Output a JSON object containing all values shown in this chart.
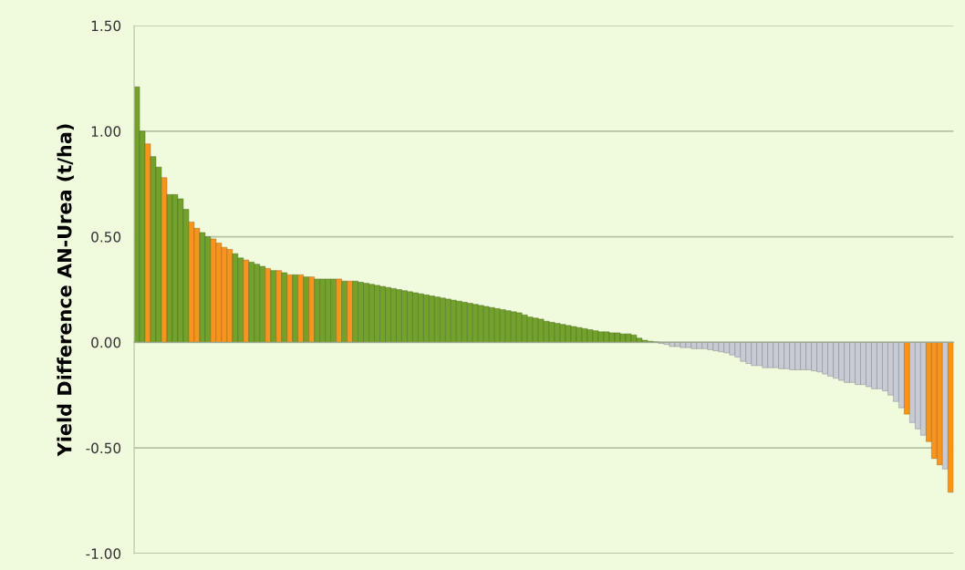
{
  "chart_data": {
    "type": "bar",
    "ylabel": "Yield Difference AN-Urea (t/ha)",
    "categories": [
      null,
      null,
      null,
      null,
      null,
      null,
      null,
      null,
      null,
      null,
      null,
      null,
      null,
      null,
      null,
      null,
      null,
      null,
      null,
      null,
      null,
      null,
      null,
      null,
      null,
      null,
      null,
      null,
      null,
      null,
      null,
      null,
      null,
      null,
      null,
      null,
      null,
      null,
      null,
      null,
      null,
      null,
      null,
      null,
      null,
      null,
      null,
      null,
      null,
      null,
      null,
      null,
      null,
      null,
      null,
      null,
      null,
      null,
      null,
      null,
      null,
      null,
      null,
      null,
      null,
      null,
      null,
      null,
      null,
      null,
      null,
      null,
      null,
      null,
      null,
      null,
      null,
      null,
      null,
      null,
      null,
      null,
      null,
      null,
      null,
      null,
      null,
      null,
      null,
      null,
      null,
      null,
      null,
      null,
      null,
      null,
      null,
      null,
      null,
      null,
      null,
      null,
      null,
      null,
      null,
      null,
      null,
      null,
      null,
      null,
      null,
      null,
      null,
      null,
      null,
      null,
      null,
      null,
      null,
      null,
      null,
      null,
      null,
      null,
      null,
      null,
      null,
      null,
      null,
      null,
      null,
      null,
      null,
      null,
      null,
      null,
      null,
      null,
      null,
      null,
      null,
      null,
      null,
      null,
      null,
      null,
      null,
      null,
      null,
      null
    ],
    "values": [
      1.21,
      1.0,
      0.94,
      0.88,
      0.83,
      0.78,
      0.7,
      0.7,
      0.68,
      0.63,
      0.57,
      0.54,
      0.52,
      0.5,
      0.49,
      0.47,
      0.45,
      0.44,
      0.42,
      0.4,
      0.39,
      0.38,
      0.37,
      0.36,
      0.35,
      0.34,
      0.34,
      0.33,
      0.32,
      0.32,
      0.32,
      0.31,
      0.31,
      0.3,
      0.3,
      0.3,
      0.3,
      0.3,
      0.29,
      0.29,
      0.29,
      0.285,
      0.28,
      0.275,
      0.27,
      0.265,
      0.26,
      0.255,
      0.25,
      0.245,
      0.24,
      0.235,
      0.23,
      0.225,
      0.22,
      0.215,
      0.21,
      0.205,
      0.2,
      0.195,
      0.19,
      0.185,
      0.18,
      0.175,
      0.17,
      0.165,
      0.16,
      0.155,
      0.15,
      0.145,
      0.14,
      0.13,
      0.12,
      0.115,
      0.11,
      0.1,
      0.095,
      0.09,
      0.085,
      0.08,
      0.075,
      0.07,
      0.065,
      0.06,
      0.055,
      0.05,
      0.05,
      0.045,
      0.045,
      0.04,
      0.04,
      0.035,
      0.02,
      0.01,
      0.005,
      0.002,
      -0.005,
      -0.01,
      -0.02,
      -0.02,
      -0.025,
      -0.025,
      -0.03,
      -0.03,
      -0.03,
      -0.035,
      -0.04,
      -0.045,
      -0.05,
      -0.06,
      -0.07,
      -0.09,
      -0.1,
      -0.11,
      -0.11,
      -0.12,
      -0.12,
      -0.12,
      -0.125,
      -0.125,
      -0.13,
      -0.13,
      -0.13,
      -0.13,
      -0.135,
      -0.14,
      -0.15,
      -0.16,
      -0.17,
      -0.18,
      -0.19,
      -0.19,
      -0.2,
      -0.2,
      -0.21,
      -0.22,
      -0.22,
      -0.23,
      -0.25,
      -0.28,
      -0.31,
      -0.34,
      -0.38,
      -0.41,
      -0.44,
      -0.47,
      -0.55,
      -0.58,
      -0.6,
      -0.71
    ],
    "colors": [
      "#72a22c",
      "#72a22c",
      "#f7941d",
      "#72a22c",
      "#72a22c",
      "#f7941d",
      "#72a22c",
      "#72a22c",
      "#72a22c",
      "#72a22c",
      "#f7941d",
      "#f7941d",
      "#72a22c",
      "#72a22c",
      "#f7941d",
      "#f7941d",
      "#f7941d",
      "#f7941d",
      "#72a22c",
      "#72a22c",
      "#f7941d",
      "#72a22c",
      "#72a22c",
      "#72a22c",
      "#f7941d",
      "#72a22c",
      "#f7941d",
      "#72a22c",
      "#f7941d",
      "#72a22c",
      "#f7941d",
      "#72a22c",
      "#f7941d",
      "#72a22c",
      "#72a22c",
      "#72a22c",
      "#72a22c",
      "#f7941d",
      "#72a22c",
      "#f7941d",
      "#72a22c",
      "#72a22c",
      "#72a22c",
      "#72a22c",
      "#72a22c",
      "#72a22c",
      "#72a22c",
      "#72a22c",
      "#72a22c",
      "#72a22c",
      "#72a22c",
      "#72a22c",
      "#72a22c",
      "#72a22c",
      "#72a22c",
      "#72a22c",
      "#72a22c",
      "#72a22c",
      "#72a22c",
      "#72a22c",
      "#72a22c",
      "#72a22c",
      "#72a22c",
      "#72a22c",
      "#72a22c",
      "#72a22c",
      "#72a22c",
      "#72a22c",
      "#72a22c",
      "#72a22c",
      "#72a22c",
      "#72a22c",
      "#72a22c",
      "#72a22c",
      "#72a22c",
      "#72a22c",
      "#72a22c",
      "#72a22c",
      "#72a22c",
      "#72a22c",
      "#72a22c",
      "#72a22c",
      "#72a22c",
      "#72a22c",
      "#72a22c",
      "#72a22c",
      "#72a22c",
      "#72a22c",
      "#72a22c",
      "#72a22c",
      "#72a22c",
      "#72a22c",
      "#72a22c",
      "#72a22c",
      "#72a22c",
      "#72a22c",
      "#c8cad4",
      "#c8cad4",
      "#c8cad4",
      "#c8cad4",
      "#c8cad4",
      "#c8cad4",
      "#c8cad4",
      "#c8cad4",
      "#c8cad4",
      "#c8cad4",
      "#c8cad4",
      "#c8cad4",
      "#c8cad4",
      "#c8cad4",
      "#c8cad4",
      "#c8cad4",
      "#c8cad4",
      "#c8cad4",
      "#c8cad4",
      "#c8cad4",
      "#c8cad4",
      "#c8cad4",
      "#c8cad4",
      "#c8cad4",
      "#c8cad4",
      "#c8cad4",
      "#c8cad4",
      "#c8cad4",
      "#c8cad4",
      "#c8cad4",
      "#c8cad4",
      "#c8cad4",
      "#c8cad4",
      "#c8cad4",
      "#c8cad4",
      "#c8cad4",
      "#c8cad4",
      "#c8cad4",
      "#c8cad4",
      "#c8cad4",
      "#c8cad4",
      "#c8cad4",
      "#c8cad4",
      "#c8cad4",
      "#c8cad4",
      "#f7941d",
      "#c8cad4",
      "#c8cad4",
      "#c8cad4",
      "#f7941d",
      "#f7941d",
      "#f7941d",
      "#c8cad4",
      "#f7941d"
    ],
    "ylim": [
      -1.0,
      1.5
    ],
    "yticks": [
      {
        "value": -1.0,
        "label": "-1.00"
      },
      {
        "value": -0.5,
        "label": "-0.50"
      },
      {
        "value": 0,
        "label": "0.00"
      },
      {
        "value": 0.5,
        "label": "0.50"
      },
      {
        "value": 1.0,
        "label": "1.00"
      },
      {
        "value": 1.5,
        "label": "1.50"
      }
    ],
    "grid": "y"
  }
}
